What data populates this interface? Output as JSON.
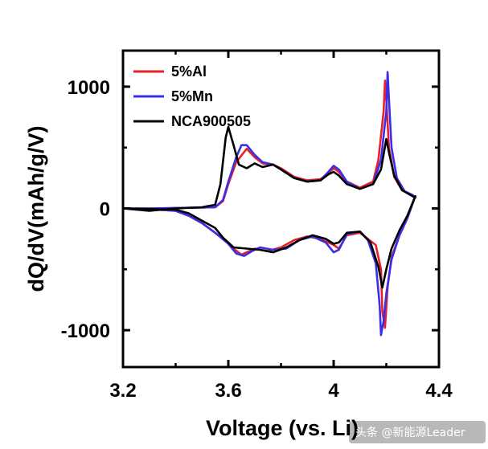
{
  "chart_data": {
    "type": "line",
    "title": "",
    "xlabel": "Voltage (vs. Li)",
    "ylabel": "dQ/dV(mAh/g/V)",
    "xlim": [
      3.2,
      4.4
    ],
    "ylim": [
      -1300,
      1300
    ],
    "xticks": [
      3.2,
      3.6,
      4.0,
      4.4
    ],
    "xtick_labels": [
      "3.2",
      "3.6",
      "4",
      "4.4"
    ],
    "yticks": [
      -1000,
      0,
      1000
    ],
    "ytick_labels": [
      "-1000",
      "0",
      "1000"
    ],
    "grid": false,
    "legend": "top-left",
    "series": [
      {
        "name": "5%Al",
        "color": "#e8202a",
        "charge": [
          [
            3.2,
            0
          ],
          [
            3.3,
            0
          ],
          [
            3.45,
            5
          ],
          [
            3.55,
            10
          ],
          [
            3.58,
            60
          ],
          [
            3.6,
            200
          ],
          [
            3.63,
            380
          ],
          [
            3.67,
            490
          ],
          [
            3.7,
            420
          ],
          [
            3.73,
            370
          ],
          [
            3.77,
            360
          ],
          [
            3.8,
            330
          ],
          [
            3.85,
            260
          ],
          [
            3.9,
            230
          ],
          [
            3.95,
            240
          ],
          [
            3.98,
            290
          ],
          [
            4.0,
            330
          ],
          [
            4.02,
            300
          ],
          [
            4.05,
            220
          ],
          [
            4.1,
            170
          ],
          [
            4.15,
            220
          ],
          [
            4.17,
            400
          ],
          [
            4.19,
            800
          ],
          [
            4.195,
            1050
          ],
          [
            4.2,
            900
          ],
          [
            4.21,
            500
          ],
          [
            4.23,
            260
          ],
          [
            4.26,
            150
          ],
          [
            4.3,
            110
          ],
          [
            4.31,
            90
          ]
        ],
        "discharge": [
          [
            4.31,
            100
          ],
          [
            4.28,
            -80
          ],
          [
            4.25,
            -220
          ],
          [
            4.22,
            -400
          ],
          [
            4.205,
            -650
          ],
          [
            4.195,
            -980
          ],
          [
            4.185,
            -850
          ],
          [
            4.18,
            -500
          ],
          [
            4.16,
            -300
          ],
          [
            4.1,
            -200
          ],
          [
            4.05,
            -220
          ],
          [
            4.02,
            -330
          ],
          [
            4.0,
            -300
          ],
          [
            3.95,
            -250
          ],
          [
            3.9,
            -230
          ],
          [
            3.85,
            -260
          ],
          [
            3.8,
            -320
          ],
          [
            3.75,
            -350
          ],
          [
            3.7,
            -330
          ],
          [
            3.65,
            -380
          ],
          [
            3.62,
            -330
          ],
          [
            3.6,
            -280
          ],
          [
            3.55,
            -200
          ],
          [
            3.5,
            -120
          ],
          [
            3.45,
            -60
          ],
          [
            3.4,
            -20
          ],
          [
            3.3,
            -5
          ],
          [
            3.2,
            0
          ]
        ]
      },
      {
        "name": "5%Mn",
        "color": "#3a2ee8",
        "charge": [
          [
            3.2,
            0
          ],
          [
            3.3,
            0
          ],
          [
            3.45,
            5
          ],
          [
            3.55,
            10
          ],
          [
            3.58,
            70
          ],
          [
            3.6,
            220
          ],
          [
            3.63,
            420
          ],
          [
            3.65,
            520
          ],
          [
            3.67,
            520
          ],
          [
            3.7,
            440
          ],
          [
            3.73,
            380
          ],
          [
            3.77,
            360
          ],
          [
            3.8,
            320
          ],
          [
            3.85,
            250
          ],
          [
            3.9,
            220
          ],
          [
            3.95,
            230
          ],
          [
            3.98,
            300
          ],
          [
            4.0,
            350
          ],
          [
            4.02,
            320
          ],
          [
            4.05,
            220
          ],
          [
            4.1,
            160
          ],
          [
            4.15,
            200
          ],
          [
            4.18,
            400
          ],
          [
            4.2,
            800
          ],
          [
            4.205,
            1120
          ],
          [
            4.21,
            900
          ],
          [
            4.22,
            500
          ],
          [
            4.24,
            250
          ],
          [
            4.27,
            140
          ],
          [
            4.3,
            110
          ],
          [
            4.31,
            90
          ]
        ],
        "discharge": [
          [
            4.31,
            100
          ],
          [
            4.28,
            -80
          ],
          [
            4.25,
            -220
          ],
          [
            4.22,
            -420
          ],
          [
            4.2,
            -700
          ],
          [
            4.19,
            -920
          ],
          [
            4.18,
            -1040
          ],
          [
            4.175,
            -800
          ],
          [
            4.16,
            -450
          ],
          [
            4.13,
            -260
          ],
          [
            4.1,
            -190
          ],
          [
            4.05,
            -210
          ],
          [
            4.02,
            -340
          ],
          [
            4.0,
            -360
          ],
          [
            3.97,
            -280
          ],
          [
            3.92,
            -230
          ],
          [
            3.87,
            -260
          ],
          [
            3.82,
            -330
          ],
          [
            3.77,
            -340
          ],
          [
            3.72,
            -320
          ],
          [
            3.69,
            -350
          ],
          [
            3.66,
            -390
          ],
          [
            3.63,
            -370
          ],
          [
            3.6,
            -290
          ],
          [
            3.55,
            -200
          ],
          [
            3.5,
            -120
          ],
          [
            3.45,
            -60
          ],
          [
            3.4,
            -20
          ],
          [
            3.3,
            -5
          ],
          [
            3.2,
            0
          ]
        ]
      },
      {
        "name": "NCA900505",
        "color": "#000000",
        "charge": [
          [
            3.2,
            0
          ],
          [
            3.3,
            -20
          ],
          [
            3.4,
            0
          ],
          [
            3.5,
            10
          ],
          [
            3.55,
            30
          ],
          [
            3.57,
            200
          ],
          [
            3.59,
            580
          ],
          [
            3.6,
            670
          ],
          [
            3.62,
            520
          ],
          [
            3.64,
            360
          ],
          [
            3.67,
            330
          ],
          [
            3.7,
            370
          ],
          [
            3.73,
            340
          ],
          [
            3.77,
            360
          ],
          [
            3.8,
            320
          ],
          [
            3.85,
            250
          ],
          [
            3.9,
            220
          ],
          [
            3.95,
            230
          ],
          [
            3.98,
            280
          ],
          [
            4.0,
            300
          ],
          [
            4.02,
            270
          ],
          [
            4.05,
            200
          ],
          [
            4.1,
            160
          ],
          [
            4.15,
            200
          ],
          [
            4.18,
            320
          ],
          [
            4.2,
            570
          ],
          [
            4.21,
            460
          ],
          [
            4.23,
            270
          ],
          [
            4.26,
            150
          ],
          [
            4.3,
            100
          ],
          [
            4.31,
            90
          ]
        ],
        "discharge": [
          [
            4.31,
            100
          ],
          [
            4.28,
            -60
          ],
          [
            4.25,
            -180
          ],
          [
            4.22,
            -330
          ],
          [
            4.2,
            -500
          ],
          [
            4.185,
            -650
          ],
          [
            4.17,
            -480
          ],
          [
            4.14,
            -280
          ],
          [
            4.1,
            -190
          ],
          [
            4.05,
            -200
          ],
          [
            4.02,
            -280
          ],
          [
            4.0,
            -290
          ],
          [
            3.97,
            -250
          ],
          [
            3.92,
            -220
          ],
          [
            3.87,
            -260
          ],
          [
            3.82,
            -320
          ],
          [
            3.77,
            -360
          ],
          [
            3.72,
            -340
          ],
          [
            3.67,
            -330
          ],
          [
            3.62,
            -320
          ],
          [
            3.58,
            -240
          ],
          [
            3.55,
            -160
          ],
          [
            3.5,
            -100
          ],
          [
            3.45,
            -40
          ],
          [
            3.4,
            -10
          ],
          [
            3.3,
            -5
          ],
          [
            3.2,
            0
          ]
        ]
      }
    ]
  },
  "watermark": "头条 @新能源Leader"
}
